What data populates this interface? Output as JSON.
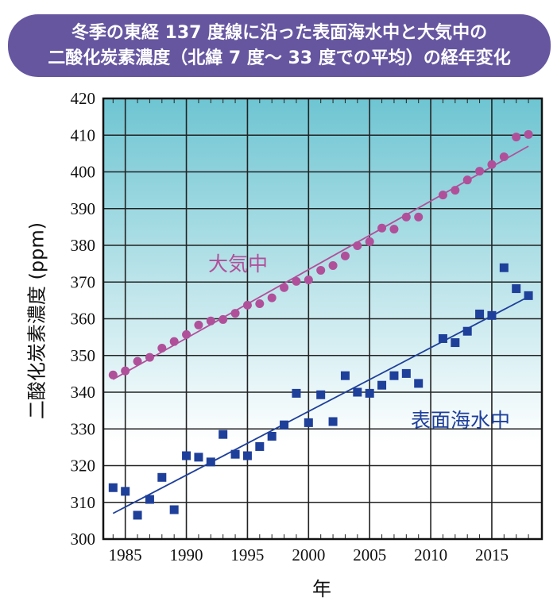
{
  "title": {
    "line1": "冬季の東経 137 度線に沿った表面海水中と大気中の",
    "line2": "二酸化炭素濃度（北緯 7 度～ 33 度での平均）の経年変化"
  },
  "chart_data": {
    "type": "scatter",
    "title": "冬季の東経 137 度線に沿った表面海水中と大気中の二酸化炭素濃度（北緯 7 度～ 33 度での平均）の経年変化",
    "xlabel": "年",
    "ylabel": "二酸化炭素濃度 (ppm)",
    "xlim": [
      1983.2,
      2019.1
    ],
    "ylim": [
      300,
      420
    ],
    "xticks": [
      1985,
      1990,
      1995,
      2000,
      2005,
      2010,
      2015
    ],
    "yticks": [
      300,
      310,
      320,
      330,
      340,
      350,
      360,
      370,
      380,
      390,
      400,
      410,
      420
    ],
    "grid": true,
    "series": [
      {
        "name": "大気中",
        "marker": "circle",
        "color": "#b0509a",
        "x": [
          1984,
          1985,
          1986,
          1987,
          1988,
          1989,
          1990,
          1991,
          1992,
          1993,
          1994,
          1995,
          1996,
          1997,
          1998,
          1999,
          2000,
          2001,
          2002,
          2003,
          2004,
          2005,
          2006,
          2007,
          2008,
          2009,
          2011,
          2012,
          2013,
          2014,
          2015,
          2016,
          2017,
          2018
        ],
        "y": [
          344.7,
          345.8,
          348.4,
          349.5,
          352,
          353.8,
          355.7,
          358.3,
          359.4,
          359.8,
          361.5,
          363.7,
          364.1,
          365.7,
          368.5,
          370.2,
          370.6,
          373.2,
          374.5,
          377.1,
          379.9,
          381,
          384.7,
          384.4,
          387.7,
          387.7,
          393.7,
          395,
          397.8,
          400.2,
          402,
          404.1,
          409.5,
          410.2
        ],
        "trend": {
          "x": [
            1984,
            2018
          ],
          "y": [
            343.5,
            407
          ]
        }
      },
      {
        "name": "表面海水中",
        "marker": "square",
        "color": "#1e3f9a",
        "x": [
          1984,
          1985,
          1986,
          1987,
          1988,
          1989,
          1990,
          1991,
          1992,
          1993,
          1994,
          1995,
          1996,
          1997,
          1998,
          1999,
          2000,
          2001,
          2002,
          2003,
          2004,
          2005,
          2006,
          2007,
          2008,
          2009,
          2011,
          2012,
          2013,
          2014,
          2015,
          2016,
          2017,
          2018
        ],
        "y": [
          314,
          313,
          306.5,
          310.8,
          316.8,
          308,
          322.7,
          322.3,
          321,
          328.5,
          323.1,
          322.7,
          325.2,
          328,
          331.1,
          339.7,
          331.7,
          339.3,
          332,
          344.5,
          340,
          339.7,
          341.9,
          344.5,
          345.1,
          342.4,
          354.6,
          353.5,
          356.6,
          361.3,
          360.9,
          373.9,
          368.2,
          366.3
        ],
        "trend": {
          "x": [
            1984,
            2018
          ],
          "y": [
            307,
            366
          ]
        }
      }
    ],
    "colors": {
      "background_top": "#6ec5d2",
      "background_bottom": "#ffffff",
      "title_bg": "#6656a0"
    }
  }
}
